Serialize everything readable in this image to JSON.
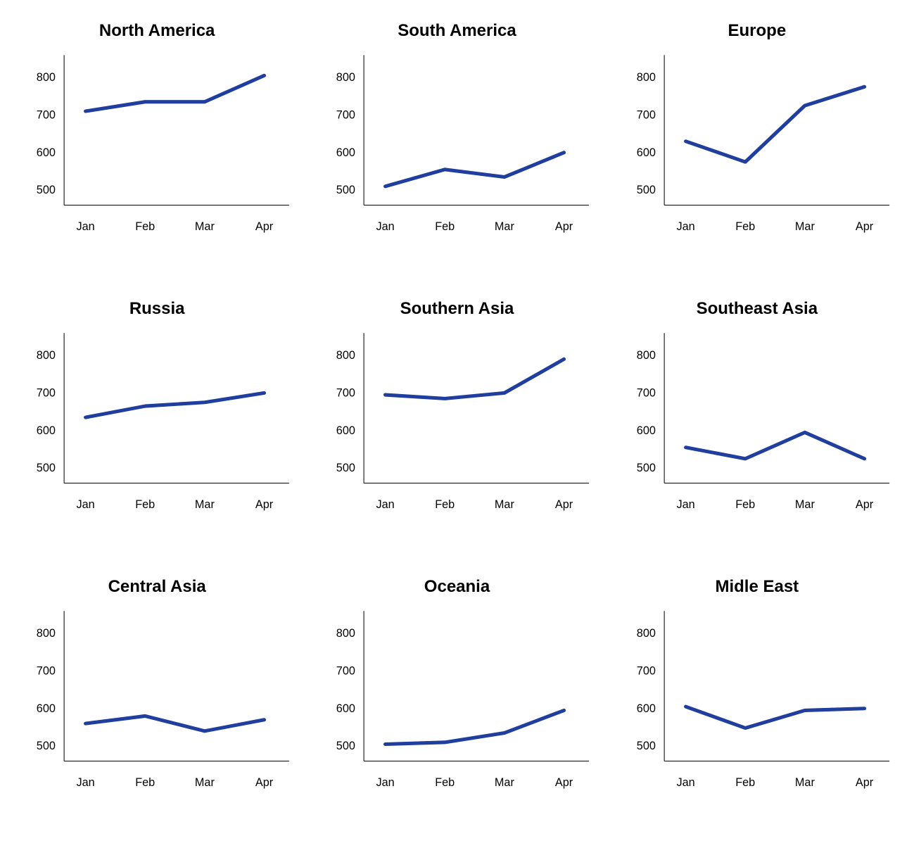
{
  "layout": {
    "cols": 3,
    "rows": 3,
    "background_color": "#ffffff"
  },
  "common": {
    "line_color": "#1f3e9e",
    "line_width": 5,
    "axis_color": "#000000",
    "title_fontsize": 24,
    "tick_fontsize": 16,
    "categories": [
      "Jan",
      "Feb",
      "Mar",
      "Apr"
    ],
    "y_ticks": [
      500,
      600,
      700,
      800
    ],
    "ylim": [
      460,
      850
    ]
  },
  "panels": [
    {
      "title": "North America",
      "type": "line",
      "values": [
        710,
        735,
        735,
        805
      ]
    },
    {
      "title": "South America",
      "type": "line",
      "values": [
        510,
        555,
        535,
        600
      ]
    },
    {
      "title": "Europe",
      "type": "line",
      "values": [
        630,
        575,
        725,
        775
      ]
    },
    {
      "title": "Russia",
      "type": "line",
      "values": [
        635,
        665,
        675,
        700
      ]
    },
    {
      "title": "Southern Asia",
      "type": "line",
      "values": [
        695,
        685,
        700,
        790
      ]
    },
    {
      "title": "Southeast Asia",
      "type": "line",
      "values": [
        555,
        525,
        595,
        525
      ]
    },
    {
      "title": "Central Asia",
      "type": "line",
      "values": [
        560,
        580,
        540,
        570
      ]
    },
    {
      "title": "Oceania",
      "type": "line",
      "values": [
        505,
        510,
        535,
        595
      ]
    },
    {
      "title": "Midle East",
      "type": "line",
      "values": [
        605,
        548,
        595,
        600
      ]
    }
  ]
}
